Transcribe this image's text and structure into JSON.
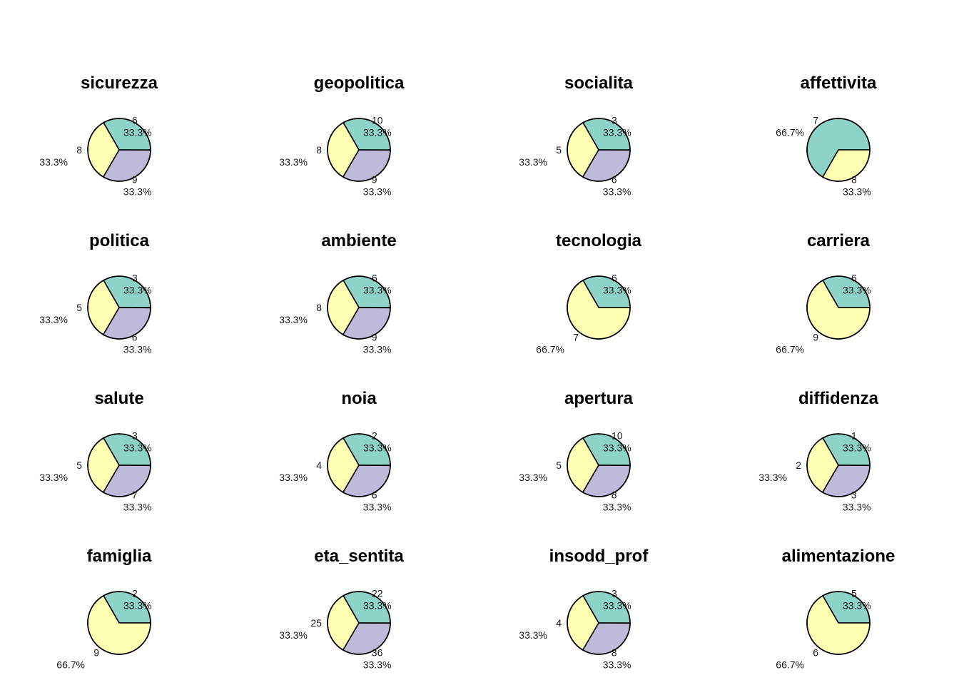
{
  "chart_data": [
    {
      "type": "pie",
      "title": "sicurezza",
      "values": [
        6,
        8,
        9
      ],
      "percents": [
        "33.3%",
        "33.3%",
        "33.3%"
      ]
    },
    {
      "type": "pie",
      "title": "geopolitica",
      "values": [
        10,
        8,
        9
      ],
      "percents": [
        "33.3%",
        "33.3%",
        "33.3%"
      ]
    },
    {
      "type": "pie",
      "title": "socialita",
      "values": [
        3,
        5,
        6
      ],
      "percents": [
        "33.3%",
        "33.3%",
        "33.3%"
      ]
    },
    {
      "type": "pie",
      "title": "affettivita",
      "values": [
        7,
        8
      ],
      "percents": [
        "66.7%",
        "33.3%"
      ]
    },
    {
      "type": "pie",
      "title": "politica",
      "values": [
        3,
        5,
        6
      ],
      "percents": [
        "33.3%",
        "33.3%",
        "33.3%"
      ]
    },
    {
      "type": "pie",
      "title": "ambiente",
      "values": [
        6,
        8,
        9
      ],
      "percents": [
        "33.3%",
        "33.3%",
        "33.3%"
      ]
    },
    {
      "type": "pie",
      "title": "tecnologia",
      "values": [
        6,
        7
      ],
      "percents": [
        "33.3%",
        "66.7%"
      ]
    },
    {
      "type": "pie",
      "title": "carriera",
      "values": [
        6,
        9
      ],
      "percents": [
        "33.3%",
        "66.7%"
      ]
    },
    {
      "type": "pie",
      "title": "salute",
      "values": [
        3,
        5,
        7
      ],
      "percents": [
        "33.3%",
        "33.3%",
        "33.3%"
      ]
    },
    {
      "type": "pie",
      "title": "noia",
      "values": [
        2,
        4,
        6
      ],
      "percents": [
        "33.3%",
        "33.3%",
        "33.3%"
      ]
    },
    {
      "type": "pie",
      "title": "apertura",
      "values": [
        10,
        5,
        8
      ],
      "percents": [
        "33.3%",
        "33.3%",
        "33.3%"
      ]
    },
    {
      "type": "pie",
      "title": "diffidenza",
      "values": [
        1,
        2,
        3
      ],
      "percents": [
        "33.3%",
        "33.3%",
        "33.3%"
      ]
    },
    {
      "type": "pie",
      "title": "famiglia",
      "values": [
        2,
        9
      ],
      "percents": [
        "33.3%",
        "66.7%"
      ]
    },
    {
      "type": "pie",
      "title": "eta_sentita",
      "values": [
        22,
        25,
        36
      ],
      "percents": [
        "33.3%",
        "33.3%",
        "33.3%"
      ]
    },
    {
      "type": "pie",
      "title": "insodd_prof",
      "values": [
        3,
        4,
        8
      ],
      "percents": [
        "33.3%",
        "33.3%",
        "33.3%"
      ]
    },
    {
      "type": "pie",
      "title": "alimentazione",
      "values": [
        5,
        6
      ],
      "percents": [
        "33.3%",
        "66.7%"
      ]
    }
  ],
  "colors": [
    "#8dd3c7",
    "#ffffb3",
    "#bebada"
  ]
}
